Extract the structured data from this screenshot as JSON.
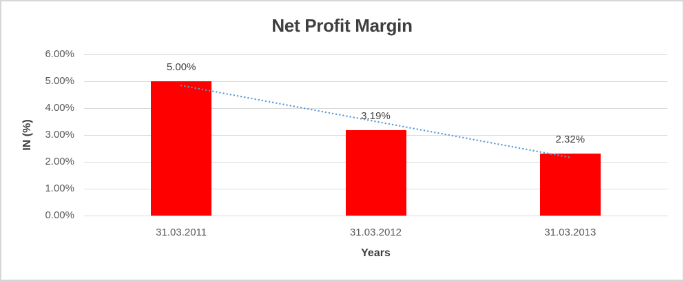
{
  "chart_data": {
    "type": "bar",
    "title": "Net Profit Margin",
    "xlabel": "Years",
    "ylabel": "IN (%)",
    "categories": [
      "31.03.2011",
      "31.03.2012",
      "31.03.2013"
    ],
    "values": [
      5.0,
      3.19,
      2.32
    ],
    "data_labels": [
      "5.00%",
      "3.19%",
      "2.32%"
    ],
    "ylim": [
      0,
      6
    ],
    "ytick_labels": [
      "0.00%",
      "1.00%",
      "2.00%",
      "3.00%",
      "4.00%",
      "5.00%",
      "6.00%"
    ],
    "grid": true,
    "legend": "none",
    "bar_color": "#FF0000",
    "trendline": {
      "fit": "linear",
      "style": "dotted",
      "color": "#5B9BD5"
    }
  }
}
